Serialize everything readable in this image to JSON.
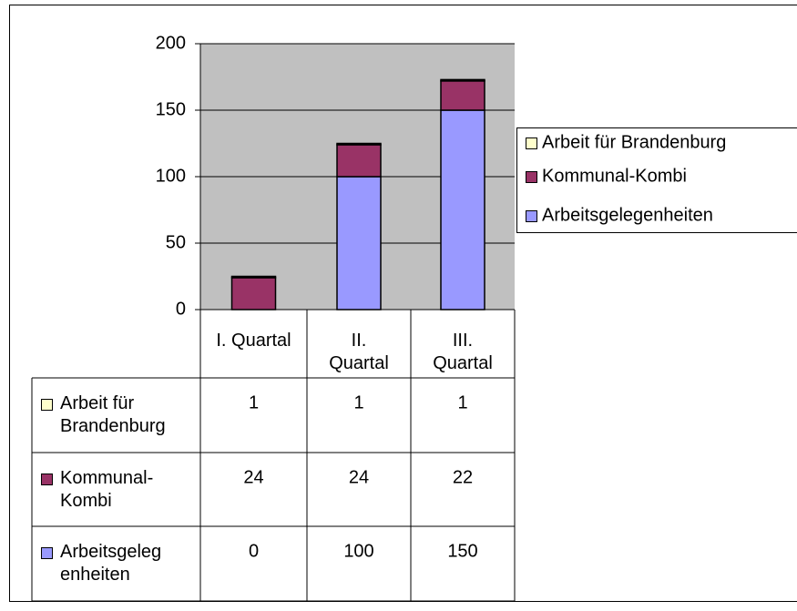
{
  "chart_data": {
    "type": "bar",
    "stacked": true,
    "categories": [
      "I. Quartal",
      "II. Quartal",
      "III. Quartal"
    ],
    "series": [
      {
        "name": "Arbeit für Brandenburg",
        "color": "#ffffcc",
        "values": [
          1,
          1,
          1
        ]
      },
      {
        "name": "Kommunal-Kombi",
        "color": "#993366",
        "values": [
          24,
          24,
          22
        ]
      },
      {
        "name": "Arbeitsgelegenheiten",
        "color": "#9999ff",
        "values": [
          0,
          100,
          150
        ]
      }
    ],
    "ylim": [
      0,
      200
    ],
    "yticks": [
      0,
      50,
      100,
      150,
      200
    ],
    "grid": true,
    "legend": "right",
    "data_table": true
  }
}
